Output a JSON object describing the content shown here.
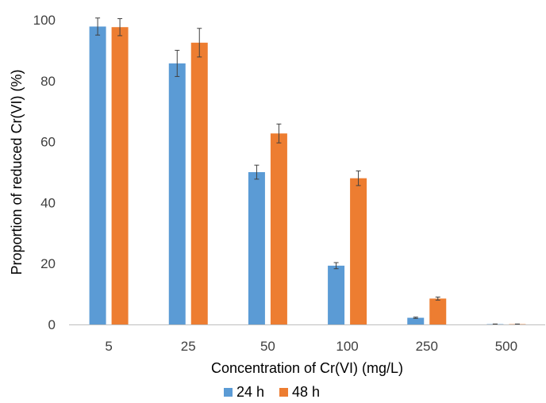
{
  "chart_data": {
    "type": "bar",
    "title": "",
    "xlabel": "Concentration of Cr(VI) (mg/L)",
    "ylabel": "Proportion of reduced Cr(VI) (%)",
    "ylim": [
      0,
      100
    ],
    "yticks": [
      0,
      20,
      40,
      60,
      80,
      100
    ],
    "grid": false,
    "legend_position": "bottom",
    "categories": [
      "5",
      "25",
      "50",
      "100",
      "250",
      "500"
    ],
    "series": [
      {
        "name": "24 h",
        "color": "#5B9BD5",
        "values": [
          97.8,
          85.7,
          50.0,
          19.3,
          2.2,
          0.1
        ],
        "errors": [
          2.8,
          4.3,
          2.3,
          1.0,
          0.2,
          0.05
        ]
      },
      {
        "name": "48 h",
        "color": "#ED7D31",
        "values": [
          97.6,
          92.5,
          62.7,
          48.0,
          8.5,
          0.1
        ],
        "errors": [
          2.8,
          4.7,
          3.1,
          2.4,
          0.5,
          0.05
        ]
      }
    ]
  }
}
